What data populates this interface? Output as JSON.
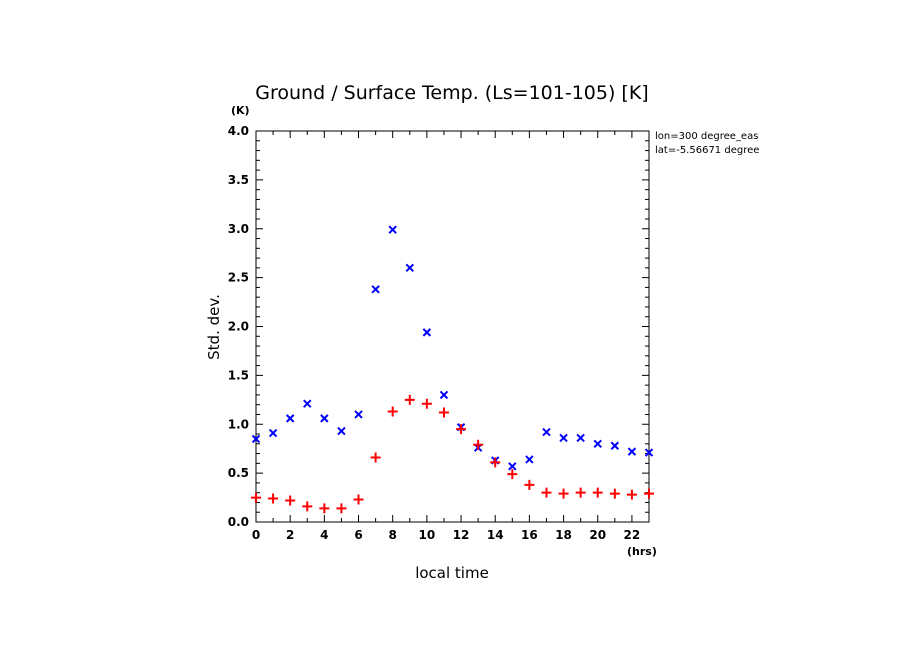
{
  "chart_data": {
    "type": "scatter",
    "title": "Ground / Surface Temp. (Ls=101-105) [K]",
    "xlabel": "local time",
    "ylabel": "Std. dev.",
    "xunit": "(hrs)",
    "yunit": "(K)",
    "xlim": [
      0,
      23
    ],
    "ylim": [
      0,
      4.0
    ],
    "xticks": [
      "0",
      "2",
      "4",
      "6",
      "8",
      "10",
      "12",
      "14",
      "16",
      "18",
      "20",
      "22"
    ],
    "yticks": [
      "0.0",
      "0.5",
      "1.0",
      "1.5",
      "2.0",
      "2.5",
      "3.0",
      "3.5",
      "4.0"
    ],
    "annotations": [
      "lon=300 degree_eas",
      "lat=-5.56671 degree"
    ],
    "grid": false,
    "series": [
      {
        "marker": "x",
        "color": "#0000ff",
        "x": [
          0,
          1,
          2,
          3,
          4,
          5,
          6,
          7,
          8,
          9,
          10,
          11,
          12,
          13,
          14,
          15,
          16,
          17,
          18,
          19,
          20,
          21,
          22,
          23
        ],
        "y": [
          0.85,
          0.91,
          1.06,
          1.21,
          1.06,
          0.93,
          1.1,
          2.38,
          2.99,
          2.6,
          1.94,
          1.3,
          0.97,
          0.76,
          0.63,
          0.57,
          0.64,
          0.92,
          0.86,
          0.86,
          0.8,
          0.78,
          0.72,
          0.71
        ]
      },
      {
        "marker": "+",
        "color": "#ff0000",
        "x": [
          0,
          1,
          2,
          3,
          4,
          5,
          6,
          7,
          8,
          9,
          10,
          11,
          12,
          13,
          14,
          15,
          16,
          17,
          18,
          19,
          20,
          21,
          22,
          23
        ],
        "y": [
          0.25,
          0.24,
          0.22,
          0.16,
          0.14,
          0.14,
          0.23,
          0.66,
          1.13,
          1.25,
          1.21,
          1.12,
          0.95,
          0.79,
          0.61,
          0.49,
          0.38,
          0.3,
          0.29,
          0.3,
          0.3,
          0.29,
          0.28,
          0.29
        ]
      }
    ]
  }
}
